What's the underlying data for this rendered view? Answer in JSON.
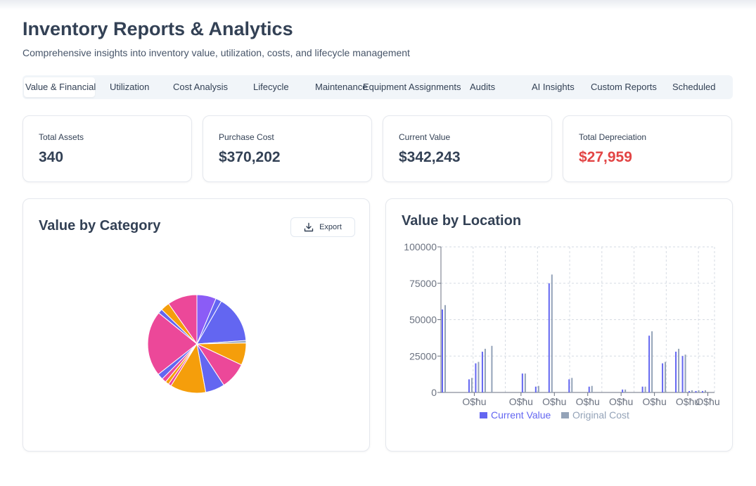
{
  "header": {
    "title": "Inventory Reports & Analytics",
    "subtitle": "Comprehensive insights into inventory value, utilization, costs, and lifecycle management"
  },
  "tabs": [
    {
      "label": "Value & Financial",
      "active": true
    },
    {
      "label": "Utilization"
    },
    {
      "label": "Cost Analysis"
    },
    {
      "label": "Lifecycle"
    },
    {
      "label": "Maintenance"
    },
    {
      "label": "Equipment Assignments"
    },
    {
      "label": "Audits"
    },
    {
      "label": "AI Insights"
    },
    {
      "label": "Custom Reports"
    },
    {
      "label": "Scheduled"
    }
  ],
  "stats": [
    {
      "label": "Total Assets",
      "value": "340"
    },
    {
      "label": "Purchase Cost",
      "value": "$370,202"
    },
    {
      "label": "Current Value",
      "value": "$342,243"
    },
    {
      "label": "Total Depreciation",
      "value": "$27,959",
      "color": "#e24545"
    }
  ],
  "category_panel": {
    "title": "Value by Category",
    "export_label": "Export",
    "export_icon": "download-icon"
  },
  "location_panel": {
    "title": "Value by Location"
  },
  "chart_data": [
    {
      "type": "pie",
      "title": "Value by Category",
      "slices": [
        {
          "value": 6.5,
          "color": "#8b5cf6"
        },
        {
          "value": 2.0,
          "color": "#6366f1"
        },
        {
          "value": 16.0,
          "color": "#6366f1"
        },
        {
          "value": 0.8,
          "color": "#94a3b8"
        },
        {
          "value": 7.5,
          "color": "#f59e0b"
        },
        {
          "value": 9.0,
          "color": "#ec4899"
        },
        {
          "value": 6.5,
          "color": "#6366f1"
        },
        {
          "value": 12.0,
          "color": "#f59e0b"
        },
        {
          "value": 1.0,
          "color": "#ec4899"
        },
        {
          "value": 1.2,
          "color": "#f59e0b"
        },
        {
          "value": 1.5,
          "color": "#ec4899"
        },
        {
          "value": 2.0,
          "color": "#6366f1"
        },
        {
          "value": 22.0,
          "color": "#ec4899"
        },
        {
          "value": 1.5,
          "color": "#6366f1"
        },
        {
          "value": 3.0,
          "color": "#f59e0b"
        },
        {
          "value": 10.0,
          "color": "#ec4899"
        }
      ]
    },
    {
      "type": "bar",
      "title": "Value by Location",
      "ylim": [
        0,
        100000
      ],
      "yticks": [
        "0",
        "25000",
        "50000",
        "75000",
        "100000"
      ],
      "xtick_labels": [
        "O$ħu",
        "O$ħu",
        "O$ħu",
        "O$ħu",
        "O$ħu",
        "O$ħu",
        "O$ħu",
        "O$ħu"
      ],
      "legend_position": "bottom",
      "series": [
        {
          "name": "Current Value",
          "color": "#6366f1",
          "values": [
            57000,
            0,
            0,
            0,
            9000,
            20000,
            28000,
            0,
            0,
            0,
            0,
            0,
            13000,
            0,
            4000,
            0,
            75000,
            0,
            0,
            9000,
            0,
            0,
            4000,
            0,
            0,
            0,
            0,
            2000,
            0,
            0,
            4000,
            39000,
            0,
            20000,
            0,
            28000,
            25000,
            1000,
            1000,
            1000,
            0
          ]
        },
        {
          "name": "Original Cost",
          "color": "#94a3b8",
          "values": [
            60000,
            0,
            0,
            0,
            10000,
            21000,
            30000,
            32000,
            0,
            0,
            0,
            0,
            13000,
            0,
            4500,
            0,
            81000,
            0,
            0,
            10000,
            0,
            0,
            4500,
            0,
            0,
            0,
            0,
            2000,
            0,
            0,
            4000,
            42000,
            0,
            21000,
            0,
            30000,
            26000,
            1500,
            1500,
            1500,
            0
          ]
        }
      ]
    }
  ]
}
